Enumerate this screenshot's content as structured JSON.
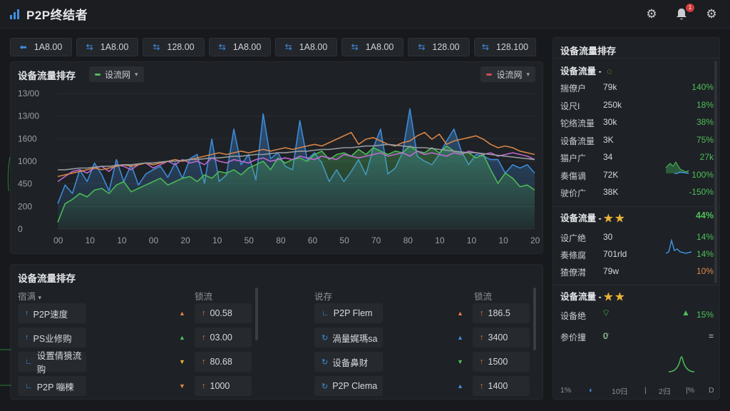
{
  "app": {
    "title": "P2P终结者"
  },
  "header": {
    "notification_count": "1",
    "icons": [
      "settings-icon",
      "bell-icon",
      "network-settings-icon"
    ]
  },
  "stats": [
    {
      "arrow": "⬅",
      "value": "1A8.00"
    },
    {
      "arrow": "⇆",
      "value": "1A8.00"
    },
    {
      "arrow": "⇆",
      "value": "128.00"
    },
    {
      "arrow": "⇆",
      "value": "1A8.00"
    },
    {
      "arrow": "⇆",
      "value": "1A8.00"
    },
    {
      "arrow": "⇆",
      "value": "1A8.00"
    },
    {
      "arrow": "⇆",
      "value": "128.00"
    },
    {
      "arrow": "⇆",
      "value": "128.100"
    }
  ],
  "main_chart": {
    "title": "设备流量排存",
    "dropdown_left": "设流网",
    "dropdown_right": "设流网"
  },
  "chart_data": {
    "type": "line",
    "y_ticks": [
      "13/00",
      "13/00",
      "1600",
      "1000",
      "450",
      "200",
      "0"
    ],
    "x_ticks": [
      "00",
      "10",
      "10",
      "00",
      "20",
      "10",
      "50",
      "80",
      "60",
      "50",
      "70",
      "80",
      "10",
      "10",
      "10",
      "20"
    ],
    "ylim": [
      0,
      1600
    ],
    "series": [
      {
        "color": "#3f8fe0",
        "fill": true,
        "values": [
          300,
          520,
          420,
          700,
          560,
          780,
          640,
          450,
          820,
          560,
          760,
          520,
          650,
          700,
          740,
          610,
          780,
          600,
          830,
          880,
          540,
          1060,
          560,
          640,
          1180,
          760,
          880,
          580,
          1360,
          830,
          900,
          740,
          700,
          1280,
          820,
          900,
          780,
          560,
          700,
          560,
          680,
          820,
          640,
          960,
          1180,
          650,
          720,
          900,
          1420,
          860,
          800,
          760,
          880,
          1040,
          1180,
          920,
          760,
          880,
          860,
          820,
          820,
          660,
          760,
          720,
          760,
          660
        ]
      },
      {
        "color": "#4fbf5a",
        "fill": true,
        "values": [
          80,
          300,
          350,
          420,
          380,
          460,
          480,
          420,
          520,
          560,
          440,
          480,
          520,
          560,
          600,
          520,
          560,
          600,
          620,
          560,
          640,
          600,
          680,
          660,
          700,
          640,
          720,
          760,
          800,
          700,
          840,
          780,
          820,
          840,
          800,
          880,
          920,
          820,
          880,
          900,
          860,
          940,
          880,
          960,
          920,
          880,
          920,
          900,
          980,
          920,
          900,
          960,
          900,
          980,
          920,
          900,
          900,
          840,
          880,
          700,
          540,
          660,
          600,
          500,
          520,
          460
        ]
      },
      {
        "color": "#c46bd8",
        "fill": false,
        "values": [
          560,
          620,
          680,
          700,
          660,
          720,
          740,
          680,
          760,
          740,
          700,
          760,
          780,
          720,
          760,
          800,
          760,
          820,
          780,
          800,
          760,
          840,
          800,
          780,
          820,
          800,
          780,
          820,
          840,
          800,
          820,
          840,
          820,
          860,
          840,
          820,
          860,
          840,
          820,
          880,
          860,
          840,
          860,
          880,
          900,
          860,
          880,
          900,
          860,
          920,
          880,
          900,
          880,
          860,
          900,
          880,
          920,
          900,
          880,
          900,
          860,
          880,
          900,
          880,
          860,
          820
        ]
      },
      {
        "color": "#e08a4a",
        "fill": false,
        "values": [
          620,
          640,
          660,
          680,
          700,
          720,
          700,
          720,
          740,
          760,
          740,
          760,
          780,
          760,
          780,
          800,
          820,
          800,
          820,
          840,
          860,
          880,
          900,
          880,
          900,
          920,
          900,
          920,
          940,
          920,
          940,
          960,
          940,
          960,
          980,
          1000,
          980,
          1020,
          1060,
          1100,
          1140,
          1000,
          1060,
          1080,
          1040,
          1000,
          980,
          1020,
          1040,
          1100,
          1140,
          1060,
          1120,
          1000,
          1040,
          1060,
          1080,
          1100,
          1060,
          1000,
          960,
          980,
          960,
          920,
          900,
          880
        ]
      },
      {
        "color": "#9aa0a6",
        "fill": false,
        "values": [
          700,
          700,
          710,
          720,
          720,
          730,
          740,
          740,
          750,
          760,
          760,
          770,
          780,
          780,
          790,
          800,
          800,
          810,
          820,
          820,
          830,
          840,
          840,
          850,
          860,
          860,
          870,
          880,
          880,
          890,
          900,
          900,
          910,
          920,
          920,
          930,
          940,
          940,
          950,
          960,
          960,
          970,
          980,
          980,
          990,
          1000,
          990,
          980,
          970,
          960,
          960,
          950,
          940,
          930,
          920,
          910,
          900,
          900,
          890,
          880,
          870,
          860,
          850,
          840,
          830,
          820
        ]
      }
    ]
  },
  "table": {
    "title": "设备流量排存",
    "left_headers": [
      "宿满",
      "锁流"
    ],
    "right_headers": [
      "说存",
      "锁流"
    ],
    "left_rows": [
      {
        "name": "P2P速度",
        "arrow": "↑",
        "trend": "▲",
        "trend_color": "#e07b4a",
        "value": "00.58"
      },
      {
        "name": "PS业修购",
        "arrow": "↑",
        "trend": "▲",
        "trend_color": "#4fbf5a",
        "value": "03.00"
      },
      {
        "name": "设置倩獍流购",
        "arrow": "∟",
        "trend": "▼",
        "trend_color": "#e8b23a",
        "value": "80.68"
      },
      {
        "name": "P2P 嘣楝",
        "arrow": "∟",
        "trend": "▼",
        "trend_color": "#e08a4a",
        "value": "1000"
      }
    ],
    "right_rows": [
      {
        "name": "P2P Flem",
        "arrow": "∟",
        "trend": "▲",
        "trend_color": "#e07b4a",
        "value": "186.5"
      },
      {
        "name": "渦量娓瑪sa",
        "arrow": "↻",
        "trend": "▲",
        "trend_color": "#3f8fe0",
        "value": "3400"
      },
      {
        "name": "设备鼻财",
        "arrow": "↻",
        "trend": "▼",
        "trend_color": "#4fbf5a",
        "value": "1500"
      },
      {
        "name": "P2P Clema",
        "arrow": "↻",
        "trend": "▲",
        "trend_color": "#3f8fe0",
        "value": "1400"
      }
    ]
  },
  "right_panel": {
    "title": "设备流量排存",
    "section1": {
      "title": "设备流量 -",
      "rows": [
        {
          "label": "揣僚户",
          "value": "79k",
          "pct": "140%",
          "pct_class": "green"
        },
        {
          "label": "设尺I",
          "value": "250k",
          "pct": "18%",
          "pct_class": "green"
        },
        {
          "label": "铊络流量",
          "value": "30k",
          "pct": "38%",
          "pct_class": "green"
        },
        {
          "label": "设备流量",
          "value": "3K",
          "pct": "75%",
          "pct_class": "green"
        },
        {
          "label": "猫户广",
          "value": "34",
          "pct": "27k",
          "pct_class": "green"
        },
        {
          "label": "奏傷谪",
          "value": "72K",
          "pct": "100%",
          "pct_class": "green"
        },
        {
          "label": "驶价广",
          "value": "38K",
          "pct": "-150%",
          "pct_class": "green"
        }
      ]
    },
    "section2": {
      "title": "设备流量 -",
      "stars": "★ ★",
      "pct": "44%",
      "rows": [
        {
          "label": "设广绝",
          "value": "30",
          "pct": "14%",
          "pct_class": "green"
        },
        {
          "label": "奏條腐",
          "value": "701rld",
          "pct": "14%",
          "pct_class": "green"
        },
        {
          "label": "猹僚潸",
          "value": "79w",
          "pct": "10%",
          "pct_class": "orange"
        }
      ]
    },
    "section3": {
      "title": "设备流量 -",
      "stars": "★ ★",
      "rows": [
        {
          "label": "设备绝",
          "value": "",
          "pct": "15%",
          "pct_class": "green"
        },
        {
          "label": "参价撞",
          "value": "0",
          "pct": "=",
          "pct_class": ""
        }
      ]
    },
    "footer": [
      "1%",
      "◐",
      "10归",
      "|",
      "2归",
      "|%",
      "D"
    ]
  }
}
